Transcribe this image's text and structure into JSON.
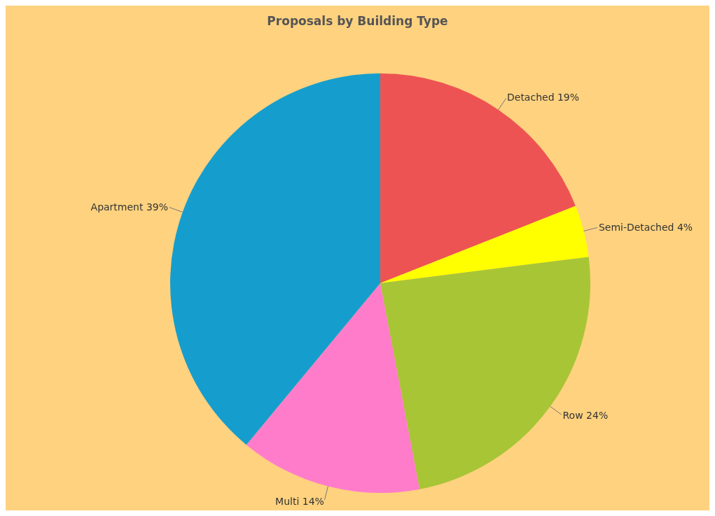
{
  "chart_data": {
    "type": "pie",
    "title": "Proposals by Building Type",
    "categories": [
      "Detached",
      "Semi-Detached",
      "Row",
      "Multi",
      "Apartment"
    ],
    "values": [
      19,
      4,
      24,
      14,
      39
    ],
    "value_labels": [
      "19%",
      "4%",
      "24%",
      "14%",
      "39%"
    ],
    "colors": [
      "#ee5353",
      "#ffff00",
      "#a8c535",
      "#ff7ccb",
      "#159ecd"
    ]
  }
}
